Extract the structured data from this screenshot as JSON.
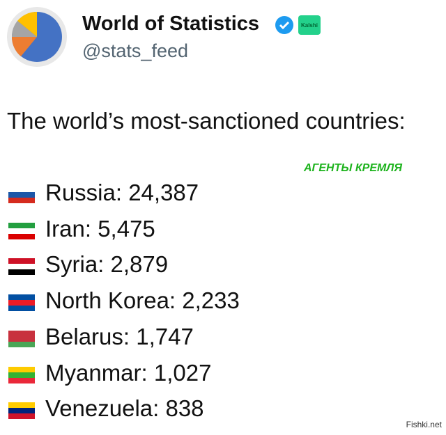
{
  "header": {
    "name": "World of Statistics",
    "badge": "Kalshi",
    "handle": "@stats_feed"
  },
  "post": {
    "heading": "The world’s most-sanctioned countries:",
    "items": [
      "Russia: 24,387",
      "Iran: 5,475",
      "Syria: 2,879",
      "North Korea: 2,233",
      "Belarus: 1,747",
      "Myanmar: 1,027",
      "Venezuela: 838"
    ]
  },
  "overlay": "АГЕНТЫ КРЕМЛЯ",
  "watermark": "Fishki.net"
}
